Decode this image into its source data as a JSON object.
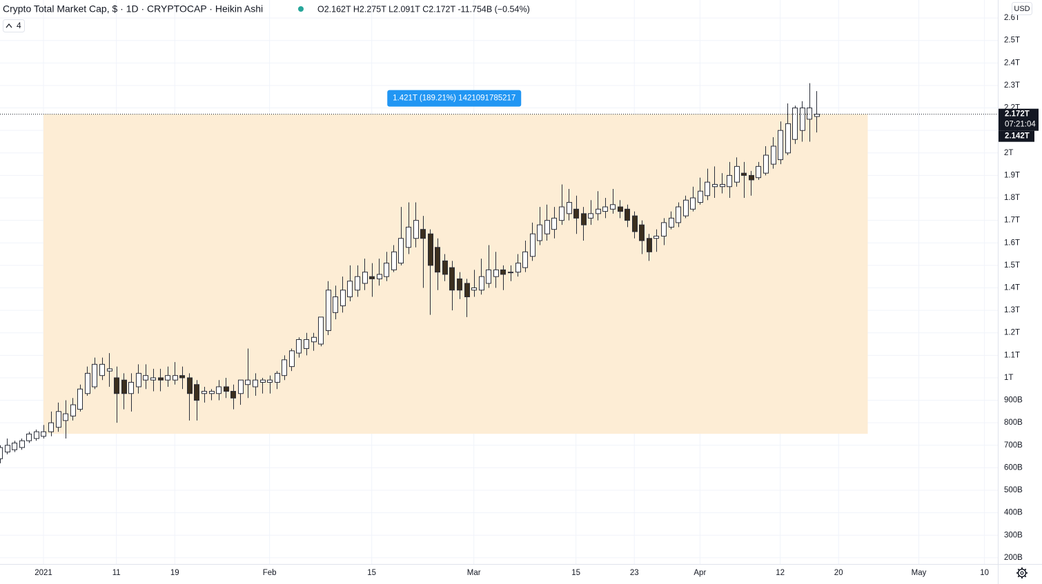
{
  "chart_data": {
    "type": "candlestick",
    "title": "Crypto Total Market Cap, $ · 1D · CRYPTOCAP · Heikin Ashi",
    "ohlc_legend": "O2.162T H2.275T L2.091T C2.172T -11.754B (−0.54%)",
    "indicator_count": "4",
    "currency": "USD",
    "last_price_label": "2.172T",
    "countdown": "07:21:04",
    "second_price_label": "2.142T",
    "up_color": "#ffffff",
    "down_color": "#3b2f1e",
    "wick_color": "#2a2e39",
    "grid": true,
    "xlim": [
      "2020-12-26T01:00",
      "2021-05-11T20:00"
    ],
    "ylim": [
      0.172,
      2.68
    ],
    "xticks": [
      {
        "value": "2021-01-01",
        "label": "2021"
      },
      {
        "value": "2021-01-11",
        "label": "11"
      },
      {
        "value": "2021-01-19",
        "label": "19"
      },
      {
        "value": "2021-02-01",
        "label": "Feb"
      },
      {
        "value": "2021-02-15",
        "label": "15"
      },
      {
        "value": "2021-03-01",
        "label": "Mar"
      },
      {
        "value": "2021-03-15",
        "label": "15"
      },
      {
        "value": "2021-03-23",
        "label": "23"
      },
      {
        "value": "2021-04-01",
        "label": "Apr"
      },
      {
        "value": "2021-04-12",
        "label": "12"
      },
      {
        "value": "2021-04-20",
        "label": "20"
      },
      {
        "value": "2021-05-01",
        "label": "May"
      },
      {
        "value": "2021-05-10",
        "label": "10"
      }
    ],
    "yticks": [
      {
        "value": 0.2,
        "label": "200B"
      },
      {
        "value": 0.3,
        "label": "300B"
      },
      {
        "value": 0.4,
        "label": "400B"
      },
      {
        "value": 0.5,
        "label": "500B"
      },
      {
        "value": 0.6,
        "label": "600B"
      },
      {
        "value": 0.7,
        "label": "700B"
      },
      {
        "value": 0.8,
        "label": "800B"
      },
      {
        "value": 0.9,
        "label": "900B"
      },
      {
        "value": 1,
        "label": "1T"
      },
      {
        "value": 1.1,
        "label": "1.1T"
      },
      {
        "value": 1.2,
        "label": "1.2T"
      },
      {
        "value": 1.3,
        "label": "1.3T"
      },
      {
        "value": 1.4,
        "label": "1.4T"
      },
      {
        "value": 1.5,
        "label": "1.5T"
      },
      {
        "value": 1.6,
        "label": "1.6T"
      },
      {
        "value": 1.7,
        "label": "1.7T"
      },
      {
        "value": 1.8,
        "label": "1.8T"
      },
      {
        "value": 1.9,
        "label": "1.9T"
      },
      {
        "value": 2,
        "label": "2T"
      },
      {
        "value": 2.1,
        "label": "2.1T"
      },
      {
        "value": 2.2,
        "label": "2.2T"
      },
      {
        "value": 2.3,
        "label": "2.3T"
      },
      {
        "value": 2.4,
        "label": "2.4T"
      },
      {
        "value": 2.5,
        "label": "2.5T"
      },
      {
        "value": 2.6,
        "label": "2.6T"
      }
    ],
    "range": {
      "label": "1.421T (189.21%) 1421091785217",
      "x0": "2021-01-01",
      "x1": "2021-04-24",
      "y0": 0.751,
      "y1": 2.172,
      "color": "#fdedd5",
      "label_color": "#2196f3"
    },
    "x": [
      "2020-12-26",
      "2020-12-27",
      "2020-12-28",
      "2020-12-29",
      "2020-12-30",
      "2020-12-31",
      "2021-01-01",
      "2021-01-02",
      "2021-01-03",
      "2021-01-04",
      "2021-01-05",
      "2021-01-06",
      "2021-01-07",
      "2021-01-08",
      "2021-01-09",
      "2021-01-10",
      "2021-01-11",
      "2021-01-12",
      "2021-01-13",
      "2021-01-14",
      "2021-01-15",
      "2021-01-16",
      "2021-01-17",
      "2021-01-18",
      "2021-01-19",
      "2021-01-20",
      "2021-01-21",
      "2021-01-22",
      "2021-01-23",
      "2021-01-24",
      "2021-01-25",
      "2021-01-26",
      "2021-01-27",
      "2021-01-28",
      "2021-01-29",
      "2021-01-30",
      "2021-01-31",
      "2021-02-01",
      "2021-02-02",
      "2021-02-03",
      "2021-02-04",
      "2021-02-05",
      "2021-02-06",
      "2021-02-07",
      "2021-02-08",
      "2021-02-09",
      "2021-02-10",
      "2021-02-11",
      "2021-02-12",
      "2021-02-13",
      "2021-02-14",
      "2021-02-15",
      "2021-02-16",
      "2021-02-17",
      "2021-02-18",
      "2021-02-19",
      "2021-02-20",
      "2021-02-21",
      "2021-02-22",
      "2021-02-23",
      "2021-02-24",
      "2021-02-25",
      "2021-02-26",
      "2021-02-27",
      "2021-02-28",
      "2021-03-01",
      "2021-03-02",
      "2021-03-03",
      "2021-03-04",
      "2021-03-05",
      "2021-03-06",
      "2021-03-07",
      "2021-03-08",
      "2021-03-09",
      "2021-03-10",
      "2021-03-11",
      "2021-03-12",
      "2021-03-13",
      "2021-03-14",
      "2021-03-15",
      "2021-03-16",
      "2021-03-17",
      "2021-03-18",
      "2021-03-19",
      "2021-03-20",
      "2021-03-21",
      "2021-03-22",
      "2021-03-23",
      "2021-03-24",
      "2021-03-25",
      "2021-03-26",
      "2021-03-27",
      "2021-03-28",
      "2021-03-29",
      "2021-03-30",
      "2021-03-31",
      "2021-04-01",
      "2021-04-02",
      "2021-04-03",
      "2021-04-04",
      "2021-04-05",
      "2021-04-06",
      "2021-04-07",
      "2021-04-08",
      "2021-04-09",
      "2021-04-10",
      "2021-04-11",
      "2021-04-12",
      "2021-04-13",
      "2021-04-14",
      "2021-04-15",
      "2021-04-16",
      "2021-04-17"
    ],
    "open": [
      0.64,
      0.67,
      0.68,
      0.69,
      0.72,
      0.73,
      0.74,
      0.76,
      0.78,
      0.81,
      0.83,
      0.86,
      0.93,
      0.96,
      1.01,
      1.03,
      1.0,
      0.99,
      0.93,
      0.96,
      0.99,
      0.99,
      1.0,
      0.99,
      0.99,
      1.01,
      1.0,
      0.97,
      0.93,
      0.93,
      0.93,
      0.96,
      0.94,
      0.93,
      0.97,
      0.96,
      0.98,
      0.98,
      0.98,
      1.01,
      1.05,
      1.11,
      1.13,
      1.16,
      1.15,
      1.21,
      1.29,
      1.32,
      1.36,
      1.39,
      1.42,
      1.45,
      1.44,
      1.45,
      1.48,
      1.51,
      1.58,
      1.62,
      1.66,
      1.64,
      1.58,
      1.52,
      1.49,
      1.44,
      1.42,
      1.39,
      1.39,
      1.42,
      1.45,
      1.48,
      1.47,
      1.47,
      1.49,
      1.54,
      1.61,
      1.64,
      1.66,
      1.7,
      1.73,
      1.75,
      1.73,
      1.71,
      1.73,
      1.74,
      1.75,
      1.76,
      1.75,
      1.72,
      1.68,
      1.62,
      1.62,
      1.63,
      1.67,
      1.69,
      1.72,
      1.75,
      1.78,
      1.81,
      1.85,
      1.85,
      1.85,
      1.87,
      1.91,
      1.9,
      1.89,
      1.91,
      1.95,
      1.97,
      2.0,
      2.06,
      2.1,
      2.15,
      2.162
    ],
    "high": [
      0.7,
      0.73,
      0.72,
      0.73,
      0.76,
      0.77,
      0.79,
      0.85,
      0.89,
      0.9,
      0.91,
      0.97,
      1.05,
      1.09,
      1.09,
      1.11,
      1.05,
      1.02,
      1.02,
      1.06,
      1.06,
      1.04,
      1.04,
      1.05,
      1.07,
      1.05,
      1.02,
      0.99,
      0.96,
      0.95,
      0.99,
      1.0,
      0.97,
      0.99,
      1.13,
      1.02,
      1.0,
      1.01,
      1.03,
      1.1,
      1.13,
      1.18,
      1.2,
      1.2,
      1.27,
      1.43,
      1.41,
      1.45,
      1.5,
      1.5,
      1.53,
      1.51,
      1.53,
      1.56,
      1.59,
      1.76,
      1.78,
      1.78,
      1.72,
      1.66,
      1.62,
      1.55,
      1.52,
      1.47,
      1.44,
      1.48,
      1.53,
      1.59,
      1.56,
      1.5,
      1.5,
      1.55,
      1.61,
      1.69,
      1.76,
      1.77,
      1.76,
      1.86,
      1.84,
      1.81,
      1.76,
      1.79,
      1.83,
      1.8,
      1.84,
      1.79,
      1.77,
      1.74,
      1.7,
      1.64,
      1.66,
      1.71,
      1.74,
      1.78,
      1.81,
      1.85,
      1.89,
      1.93,
      1.94,
      1.91,
      1.96,
      1.98,
      1.96,
      1.92,
      1.96,
      2.03,
      2.07,
      2.14,
      2.22,
      2.21,
      2.23,
      2.31,
      2.275
    ],
    "low": [
      0.62,
      0.66,
      0.67,
      0.68,
      0.71,
      0.72,
      0.73,
      0.74,
      0.76,
      0.73,
      0.81,
      0.85,
      0.92,
      0.95,
      0.99,
      0.96,
      0.8,
      0.86,
      0.85,
      0.93,
      0.95,
      0.94,
      0.94,
      0.96,
      0.97,
      0.95,
      0.81,
      0.81,
      0.89,
      0.9,
      0.9,
      0.91,
      0.86,
      0.88,
      0.91,
      0.92,
      0.93,
      0.93,
      0.95,
      0.99,
      1.03,
      1.09,
      1.1,
      1.12,
      1.14,
      1.19,
      1.26,
      1.29,
      1.34,
      1.36,
      1.39,
      1.36,
      1.41,
      1.43,
      1.47,
      1.5,
      1.55,
      1.58,
      1.4,
      1.28,
      1.39,
      1.43,
      1.3,
      1.35,
      1.27,
      1.36,
      1.37,
      1.4,
      1.4,
      1.39,
      1.43,
      1.45,
      1.47,
      1.52,
      1.59,
      1.61,
      1.62,
      1.68,
      1.7,
      1.64,
      1.61,
      1.68,
      1.7,
      1.71,
      1.73,
      1.71,
      1.67,
      1.62,
      1.55,
      1.52,
      1.56,
      1.59,
      1.66,
      1.67,
      1.71,
      1.74,
      1.77,
      1.79,
      1.8,
      1.82,
      1.8,
      1.85,
      1.8,
      1.81,
      1.88,
      1.9,
      1.93,
      1.95,
      1.99,
      2.04,
      2.05,
      2.05,
      2.091
    ],
    "close": [
      0.69,
      0.7,
      0.71,
      0.72,
      0.75,
      0.76,
      0.76,
      0.8,
      0.85,
      0.84,
      0.88,
      0.95,
      1.02,
      1.06,
      1.06,
      1.04,
      0.93,
      0.93,
      0.98,
      1.02,
      1.01,
      1.0,
      0.99,
      1.01,
      1.01,
      1.0,
      0.93,
      0.9,
      0.94,
      0.94,
      0.96,
      0.94,
      0.91,
      0.99,
      0.99,
      0.99,
      0.99,
      0.99,
      1.02,
      1.08,
      1.12,
      1.17,
      1.17,
      1.18,
      1.27,
      1.39,
      1.36,
      1.39,
      1.43,
      1.45,
      1.47,
      1.44,
      1.46,
      1.51,
      1.56,
      1.62,
      1.67,
      1.7,
      1.62,
      1.5,
      1.47,
      1.46,
      1.39,
      1.39,
      1.36,
      1.4,
      1.45,
      1.48,
      1.48,
      1.46,
      1.47,
      1.51,
      1.56,
      1.64,
      1.68,
      1.7,
      1.71,
      1.76,
      1.78,
      1.71,
      1.68,
      1.73,
      1.75,
      1.76,
      1.77,
      1.74,
      1.7,
      1.65,
      1.61,
      1.56,
      1.63,
      1.69,
      1.71,
      1.76,
      1.79,
      1.8,
      1.83,
      1.87,
      1.86,
      1.86,
      1.9,
      1.94,
      1.9,
      1.88,
      1.94,
      1.99,
      2.03,
      2.1,
      2.13,
      2.2,
      2.2,
      2.2,
      2.172
    ]
  }
}
